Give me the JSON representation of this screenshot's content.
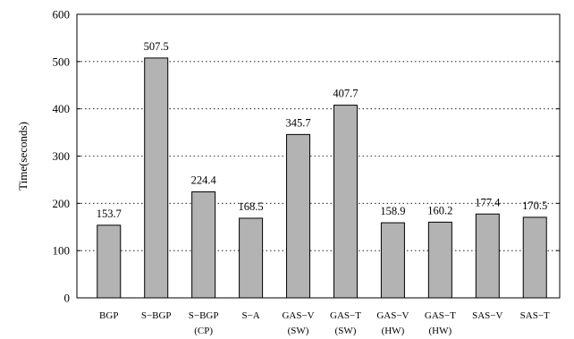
{
  "chart_data": {
    "type": "bar",
    "title": "",
    "xlabel": "",
    "ylabel": "Time(seconds)",
    "ylim": [
      0,
      600
    ],
    "yticks": [
      0,
      100,
      200,
      300,
      400,
      500,
      600
    ],
    "grid": "horizontal-dotted",
    "categories": [
      [
        "BGP"
      ],
      [
        "S−BGP"
      ],
      [
        "S−BGP",
        "(CP)"
      ],
      [
        "S−A"
      ],
      [
        "GAS−V",
        "(SW)"
      ],
      [
        "GAS−T",
        "(SW)"
      ],
      [
        "GAS−V",
        "(HW)"
      ],
      [
        "GAS−T",
        "(HW)"
      ],
      [
        "SAS−V"
      ],
      [
        "SAS−T"
      ]
    ],
    "values": [
      153.7,
      507.5,
      224.4,
      168.5,
      345.7,
      407.7,
      158.9,
      160.2,
      177.4,
      170.5
    ],
    "value_labels": [
      "153.7",
      "507.5",
      "224.4",
      "168.5",
      "345.7",
      "407.7",
      "158.9",
      "160.2",
      "177.4",
      "170.5"
    ],
    "bar_color": "#b3b3b3",
    "bar_edge_color": "#000000"
  }
}
